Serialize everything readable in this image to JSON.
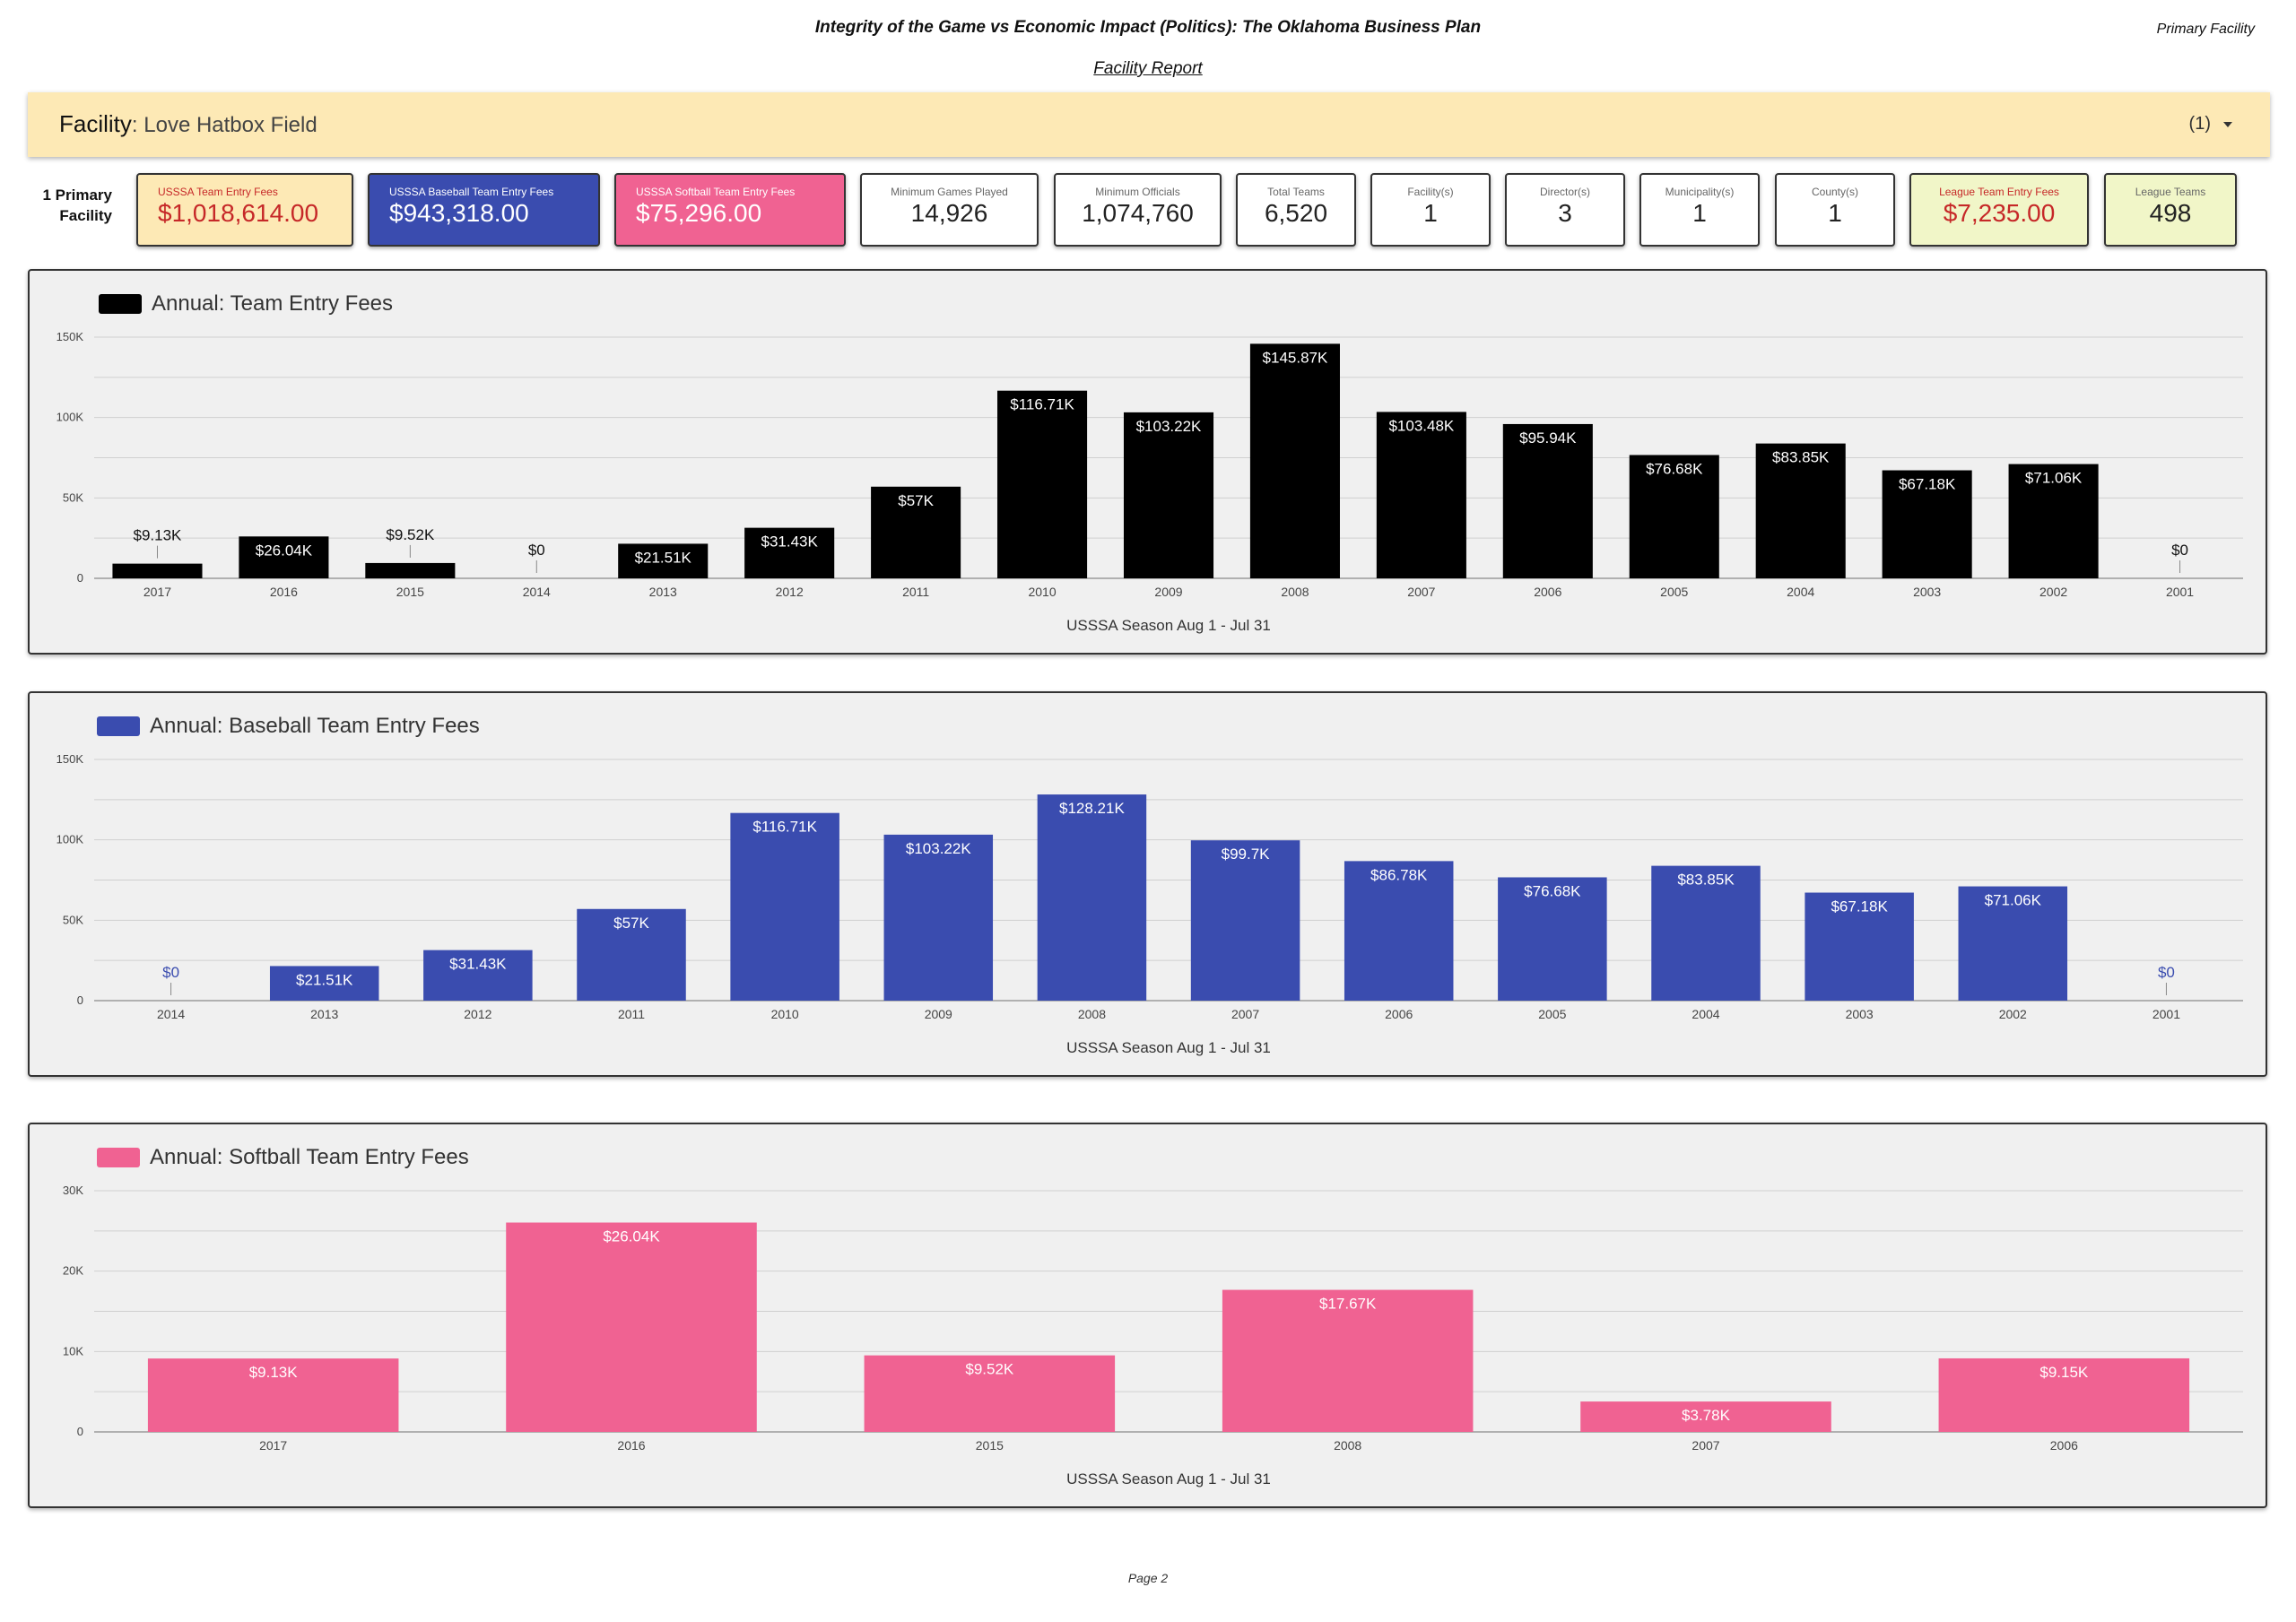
{
  "header": {
    "title": "Integrity of the Game vs Economic Impact (Politics): The Oklahoma Business Plan",
    "corner_label": "Primary Facility",
    "subtitle": "Facility Report"
  },
  "facility_bar": {
    "label": "Facility",
    "value": ": Love Hatbox Field",
    "count": "(1)"
  },
  "primary_label_line1": "1 Primary",
  "primary_label_line2": "Facility",
  "kpis": [
    {
      "label": "USSSA Team Entry Fees",
      "value": "$1,018,614.00"
    },
    {
      "label": "USSSA Baseball Team Entry Fees",
      "value": "$943,318.00"
    },
    {
      "label": "USSSA Softball Team Entry Fees",
      "value": "$75,296.00"
    },
    {
      "label": "Minimum Games Played",
      "value": "14,926"
    },
    {
      "label": "Minimum Officials",
      "value": "1,074,760"
    },
    {
      "label": "Total Teams",
      "value": "6,520"
    },
    {
      "label": "Facility(s)",
      "value": "1"
    },
    {
      "label": "Director(s)",
      "value": "3"
    },
    {
      "label": "Municipality(s)",
      "value": "1"
    },
    {
      "label": "County(s)",
      "value": "1"
    },
    {
      "label": "League Team Entry Fees",
      "value": "$7,235.00"
    },
    {
      "label": "League Teams",
      "value": "498"
    }
  ],
  "colors": {
    "black": "#000000",
    "blue": "#3a4caf",
    "pink": "#f06292",
    "gold_bg": "#fde9b5",
    "lime_bg": "#f1f6c8",
    "red_text": "#c62828"
  },
  "chart_data": [
    {
      "type": "bar",
      "title": "Annual: Team Entry Fees",
      "xlabel": "USSSA Season Aug 1 - Jul 31",
      "ylabel": "",
      "color": "#000000",
      "ylim": [
        0,
        150000
      ],
      "yticks": [
        0,
        50000,
        100000,
        150000
      ],
      "ytick_labels": [
        "0",
        "50K",
        "100K",
        "150K"
      ],
      "grid": true,
      "legend": "top-left",
      "categories": [
        "2017",
        "2016",
        "2015",
        "2014",
        "2013",
        "2012",
        "2011",
        "2010",
        "2009",
        "2008",
        "2007",
        "2006",
        "2005",
        "2004",
        "2003",
        "2002",
        "2001"
      ],
      "values": [
        9130,
        26040,
        9520,
        0,
        21510,
        31430,
        57000,
        116710,
        103220,
        145870,
        103480,
        95940,
        76680,
        83850,
        67180,
        71060,
        0
      ],
      "labels": [
        "$9.13K",
        "$26.04K",
        "$9.52K",
        "$0",
        "$21.51K",
        "$31.43K",
        "$57K",
        "$116.71K",
        "$103.22K",
        "$145.87K",
        "$103.48K",
        "$95.94K",
        "$76.68K",
        "$83.85K",
        "$67.18K",
        "$71.06K",
        "$0"
      ]
    },
    {
      "type": "bar",
      "title": "Annual: Baseball Team Entry Fees",
      "xlabel": "USSSA Season Aug 1 - Jul 31",
      "ylabel": "",
      "color": "#3a4caf",
      "ylim": [
        0,
        150000
      ],
      "yticks": [
        0,
        50000,
        100000,
        150000
      ],
      "ytick_labels": [
        "0",
        "50K",
        "100K",
        "150K"
      ],
      "grid": true,
      "legend": "top-left",
      "categories": [
        "2014",
        "2013",
        "2012",
        "2011",
        "2010",
        "2009",
        "2008",
        "2007",
        "2006",
        "2005",
        "2004",
        "2003",
        "2002",
        "2001"
      ],
      "values": [
        0,
        21510,
        31430,
        57000,
        116710,
        103220,
        128210,
        99700,
        86780,
        76680,
        83850,
        67180,
        71060,
        0
      ],
      "labels": [
        "$0",
        "$21.51K",
        "$31.43K",
        "$57K",
        "$116.71K",
        "$103.22K",
        "$128.21K",
        "$99.7K",
        "$86.78K",
        "$76.68K",
        "$83.85K",
        "$67.18K",
        "$71.06K",
        "$0"
      ]
    },
    {
      "type": "bar",
      "title": "Annual: Softball Team Entry Fees",
      "xlabel": "USSSA Season Aug 1 - Jul 31",
      "ylabel": "",
      "color": "#f06292",
      "ylim": [
        0,
        30000
      ],
      "yticks": [
        0,
        10000,
        20000,
        30000
      ],
      "ytick_labels": [
        "0",
        "10K",
        "20K",
        "30K"
      ],
      "grid": true,
      "legend": "top-left",
      "categories": [
        "2017",
        "2016",
        "2015",
        "2008",
        "2007",
        "2006"
      ],
      "values": [
        9130,
        26040,
        9520,
        17670,
        3780,
        9150
      ],
      "labels": [
        "$9.13K",
        "$26.04K",
        "$9.52K",
        "$17.67K",
        "$3.78K",
        "$9.15K"
      ]
    }
  ],
  "footer": {
    "page": "Page 2"
  }
}
